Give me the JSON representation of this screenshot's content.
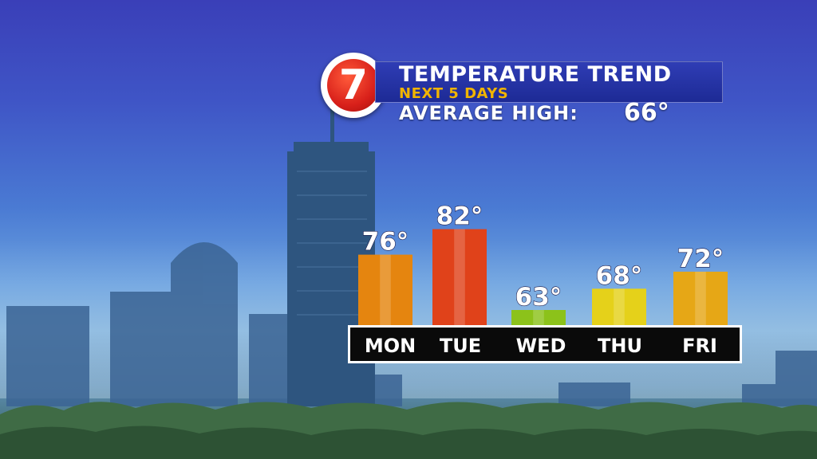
{
  "header": {
    "logo_text": "7",
    "title": "TEMPERATURE TREND",
    "subtitle": "NEXT 5 DAYS",
    "average_label": "AVERAGE HIGH:",
    "average_value": "66°"
  },
  "chart_data": {
    "type": "bar",
    "title": "TEMPERATURE TREND",
    "subtitle": "NEXT 5 DAYS",
    "categories": [
      "MON",
      "TUE",
      "WED",
      "THU",
      "FRI"
    ],
    "values": [
      76,
      82,
      63,
      68,
      72
    ],
    "value_labels": [
      "76°",
      "82°",
      "63°",
      "68°",
      "72°"
    ],
    "colors": [
      "#e5850f",
      "#e0421a",
      "#8cc21a",
      "#e5d11a",
      "#e6a716"
    ],
    "average_high": 66,
    "grid": false
  }
}
